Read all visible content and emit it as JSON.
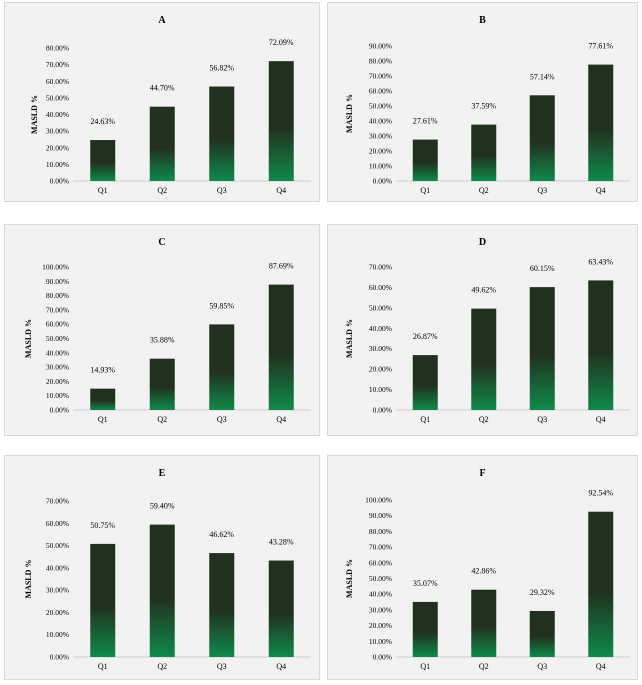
{
  "chart_data": [
    {
      "type": "bar",
      "title": "A",
      "ylabel": "MASLD %",
      "categories": [
        "Q1",
        "Q2",
        "Q3",
        "Q4"
      ],
      "values": [
        24.63,
        44.7,
        56.82,
        72.09
      ],
      "data_labels": [
        "24.63%",
        "44.70%",
        "56.82%",
        "72.09%"
      ],
      "ylim": [
        0,
        80
      ],
      "ytick_step": 10,
      "yticks": [
        "0.00%",
        "10.00%",
        "20.00%",
        "30.00%",
        "40.00%",
        "50.00%",
        "60.00%",
        "70.00%",
        "80.00%"
      ]
    },
    {
      "type": "bar",
      "title": "B",
      "ylabel": "MASLD %",
      "categories": [
        "Q1",
        "Q2",
        "Q3",
        "Q4"
      ],
      "values": [
        27.61,
        37.59,
        57.14,
        77.61
      ],
      "data_labels": [
        "27.61%",
        "37.59%",
        "57.14%",
        "77.61%"
      ],
      "ylim": [
        0,
        90
      ],
      "ytick_step": 10,
      "yticks": [
        "0.00%",
        "10.00%",
        "20.00%",
        "30.00%",
        "40.00%",
        "50.00%",
        "60.00%",
        "70.00%",
        "80.00%",
        "90.00%"
      ]
    },
    {
      "type": "bar",
      "title": "C",
      "ylabel": "MASLD %",
      "categories": [
        "Q1",
        "Q2",
        "Q3",
        "Q4"
      ],
      "values": [
        14.93,
        35.88,
        59.85,
        87.69
      ],
      "data_labels": [
        "14.93%",
        "35.88%",
        "59.85%",
        "87.69%"
      ],
      "ylim": [
        0,
        100
      ],
      "ytick_step": 10,
      "yticks": [
        "0.00%",
        "10.00%",
        "20.00%",
        "30.00%",
        "40.00%",
        "50.00%",
        "60.00%",
        "70.00%",
        "80.00%",
        "90.00%",
        "100.00%"
      ]
    },
    {
      "type": "bar",
      "title": "D",
      "ylabel": "MASLD %",
      "categories": [
        "Q1",
        "Q2",
        "Q3",
        "Q4"
      ],
      "values": [
        26.87,
        49.62,
        60.15,
        63.43
      ],
      "data_labels": [
        "26.87%",
        "49.62%",
        "60.15%",
        "63.43%"
      ],
      "ylim": [
        0,
        70
      ],
      "ytick_step": 10,
      "yticks": [
        "0.00%",
        "10.00%",
        "20.00%",
        "30.00%",
        "40.00%",
        "50.00%",
        "60.00%",
        "70.00%"
      ]
    },
    {
      "type": "bar",
      "title": "E",
      "ylabel": "MASLD %",
      "categories": [
        "Q1",
        "Q2",
        "Q3",
        "Q4"
      ],
      "values": [
        50.75,
        59.4,
        46.62,
        43.28
      ],
      "data_labels": [
        "50.75%",
        "59.40%",
        "46.62%",
        "43.28%"
      ],
      "ylim": [
        0,
        70
      ],
      "ytick_step": 10,
      "yticks": [
        "0.00%",
        "10.00%",
        "20.00%",
        "30.00%",
        "40.00%",
        "50.00%",
        "60.00%",
        "70.00%"
      ]
    },
    {
      "type": "bar",
      "title": "F",
      "ylabel": "MASLD %",
      "categories": [
        "Q1",
        "Q2",
        "Q3",
        "Q4"
      ],
      "values": [
        35.07,
        42.86,
        29.32,
        92.54
      ],
      "data_labels": [
        "35.07%",
        "42.86%",
        "29.32%",
        "92.54%"
      ],
      "ylim": [
        0,
        100
      ],
      "ytick_step": 10,
      "yticks": [
        "0.00%",
        "10.00%",
        "20.00%",
        "30.00%",
        "40.00%",
        "50.00%",
        "60.00%",
        "70.00%",
        "80.00%",
        "90.00%",
        "100.00%"
      ]
    }
  ],
  "colors": {
    "bar_dark": "#22301f",
    "bar_green": "#0f8a4a",
    "panel_bg": "#f2f2f2"
  }
}
